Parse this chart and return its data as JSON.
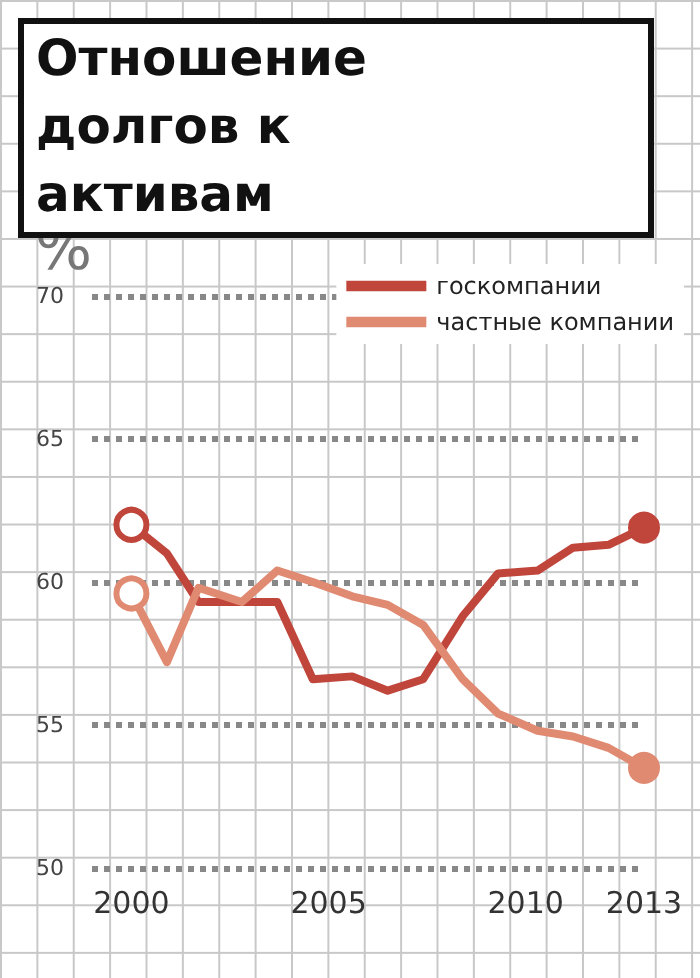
{
  "chart_data": {
    "type": "line",
    "title": "Отношение долгов к активам",
    "ylabel": "%",
    "x": [
      2000,
      2000.9,
      2001.7,
      2002.8,
      2003.7,
      2004.6,
      2005.6,
      2006.5,
      2007.4,
      2008.4,
      2009.3,
      2010.3,
      2011.2,
      2012.1,
      2013
    ],
    "series": [
      {
        "name": "госкомпании",
        "color": "#c0453b",
        "values": [
          62.0,
          61.0,
          59.3,
          59.3,
          59.3,
          56.6,
          56.7,
          56.2,
          56.6,
          58.8,
          60.3,
          60.4,
          61.2,
          61.3,
          61.9
        ]
      },
      {
        "name": "частные компании",
        "color": "#e08a72",
        "values": [
          59.6,
          57.2,
          59.8,
          59.3,
          60.4,
          60.0,
          59.5,
          59.2,
          58.5,
          56.6,
          55.4,
          54.8,
          54.6,
          54.2,
          53.5
        ]
      }
    ],
    "xlim": [
      1999,
      2013
    ],
    "xticks": [
      2000,
      2005,
      2010,
      2013
    ],
    "ylim": [
      50,
      70
    ],
    "yticks": [
      50,
      55,
      60,
      65,
      70
    ],
    "grid": "y",
    "legend": "top right",
    "line_style": "solid"
  }
}
